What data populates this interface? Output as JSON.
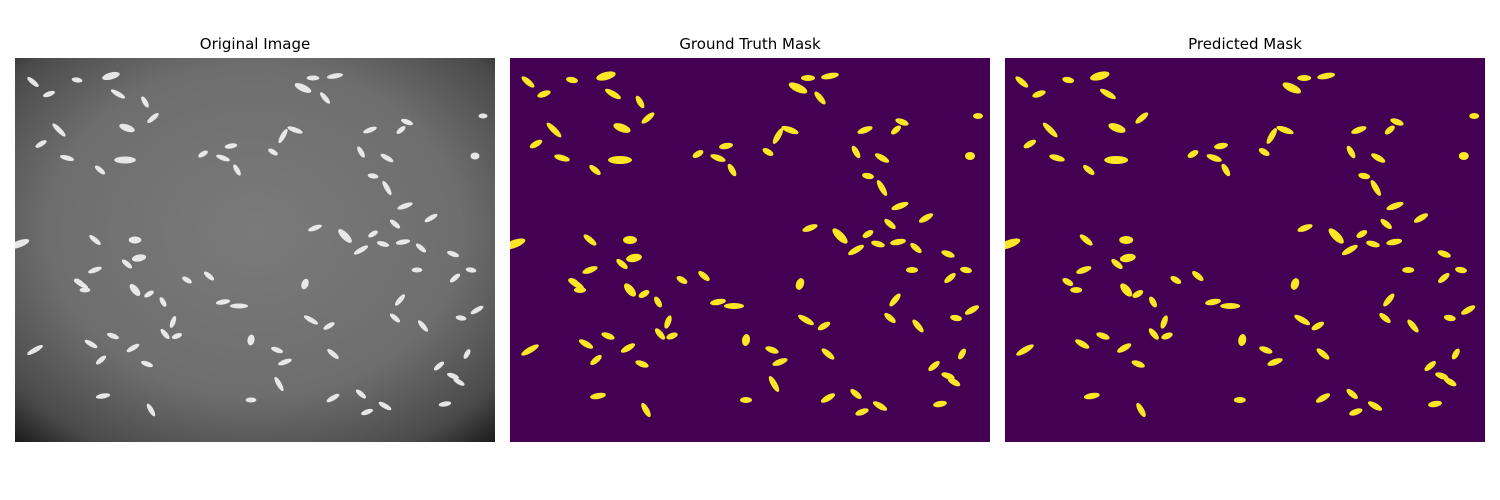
{
  "figure": {
    "panels": [
      {
        "title": "Original Image",
        "kind": "grayscale-microscopy",
        "background": "#000000"
      },
      {
        "title": "Ground Truth Mask",
        "kind": "segmentation-mask",
        "background": "#440154",
        "foreground": "#fde725"
      },
      {
        "title": "Predicted Mask",
        "kind": "segmentation-mask",
        "background": "#440154",
        "foreground": "#fde725"
      }
    ]
  }
}
